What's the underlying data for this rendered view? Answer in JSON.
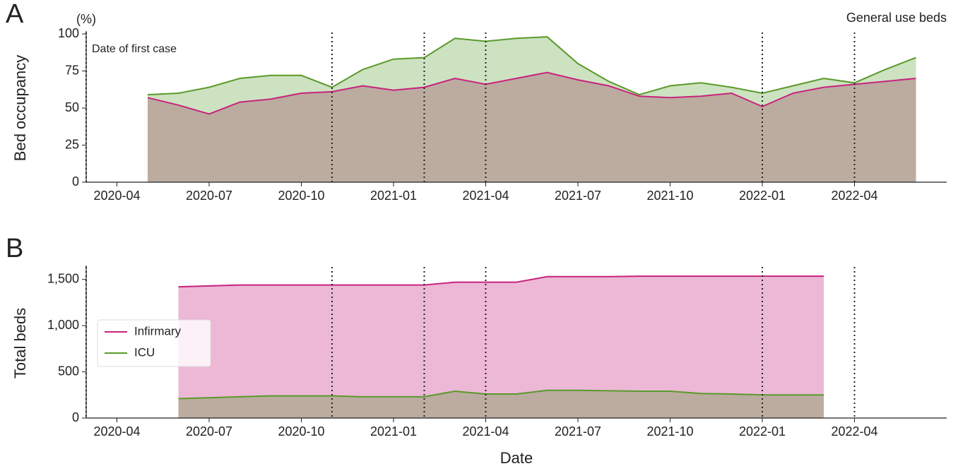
{
  "chart_data": [
    {
      "type": "area",
      "panel_label": "A",
      "title": "General use beds",
      "y_unit": "(%)",
      "ylabel": "Bed occupancy",
      "annotation": "Date of first case",
      "x": [
        "2020-05",
        "2020-06",
        "2020-07",
        "2020-08",
        "2020-09",
        "2020-10",
        "2020-11",
        "2020-12",
        "2021-01",
        "2021-02",
        "2021-03",
        "2021-04",
        "2021-05",
        "2021-06",
        "2021-07",
        "2021-08",
        "2021-09",
        "2021-10",
        "2021-11",
        "2021-12",
        "2022-01",
        "2022-02",
        "2022-03",
        "2022-04",
        "2022-05",
        "2022-06"
      ],
      "series": [
        {
          "color": "#5a9a2a",
          "fill": "#cde2c1",
          "values": [
            59,
            60,
            64,
            70,
            72,
            72,
            64,
            76,
            83,
            84,
            97,
            95,
            97,
            98,
            80,
            68,
            59,
            65,
            67,
            64,
            60,
            65,
            70,
            67,
            76,
            84
          ]
        },
        {
          "color": "#c8237d",
          "fill": "#bcaca0",
          "values": [
            57,
            52,
            46,
            54,
            56,
            60,
            61,
            65,
            62,
            64,
            70,
            66,
            70,
            74,
            69,
            65,
            58,
            57,
            58,
            60,
            51,
            60,
            64,
            66,
            68,
            70
          ]
        }
      ],
      "vlines": [
        "2020-03",
        "2020-11",
        "2021-02",
        "2021-04",
        "2022-01",
        "2022-04"
      ],
      "xlim": [
        "2020-03",
        "2022-07"
      ],
      "xticks": [
        "2020-04",
        "2020-07",
        "2020-10",
        "2021-01",
        "2021-04",
        "2021-07",
        "2021-10",
        "2022-01",
        "2022-04"
      ],
      "ylim": [
        0,
        100
      ],
      "yticks": [
        0,
        25,
        50,
        75,
        100
      ]
    },
    {
      "type": "area",
      "panel_label": "B",
      "ylabel": "Total beds",
      "xlabel": "Date",
      "legend": "center left",
      "x": [
        "2020-06",
        "2020-07",
        "2020-08",
        "2020-09",
        "2020-10",
        "2020-11",
        "2020-12",
        "2021-01",
        "2021-02",
        "2021-03",
        "2021-04",
        "2021-05",
        "2021-06",
        "2021-07",
        "2021-08",
        "2021-09",
        "2021-10",
        "2021-11",
        "2021-12",
        "2022-01",
        "2022-02",
        "2022-03"
      ],
      "series": [
        {
          "name": "Infirmary",
          "color": "#c8237d",
          "fill": "#ecb8d6",
          "values": [
            1420,
            1430,
            1440,
            1440,
            1440,
            1440,
            1440,
            1440,
            1440,
            1470,
            1470,
            1470,
            1530,
            1530,
            1530,
            1535,
            1535,
            1535,
            1535,
            1535,
            1535,
            1535
          ]
        },
        {
          "name": "ICU",
          "color": "#5a9a2a",
          "fill": "#bcaca0",
          "values": [
            210,
            220,
            230,
            240,
            240,
            240,
            230,
            230,
            230,
            290,
            260,
            260,
            300,
            300,
            295,
            290,
            290,
            265,
            260,
            250,
            250,
            250
          ]
        }
      ],
      "vlines": [
        "2020-03",
        "2020-11",
        "2021-02",
        "2021-04",
        "2022-01",
        "2022-04"
      ],
      "xlim": [
        "2020-03",
        "2022-07"
      ],
      "xticks": [
        "2020-04",
        "2020-07",
        "2020-10",
        "2021-01",
        "2021-04",
        "2021-07",
        "2021-10",
        "2022-01",
        "2022-04"
      ],
      "ylim": [
        0,
        1620
      ],
      "yticks": [
        0,
        500,
        {
          "value": 1000,
          "label": "1,000"
        },
        {
          "value": 1500,
          "label": "1,500"
        }
      ]
    }
  ]
}
